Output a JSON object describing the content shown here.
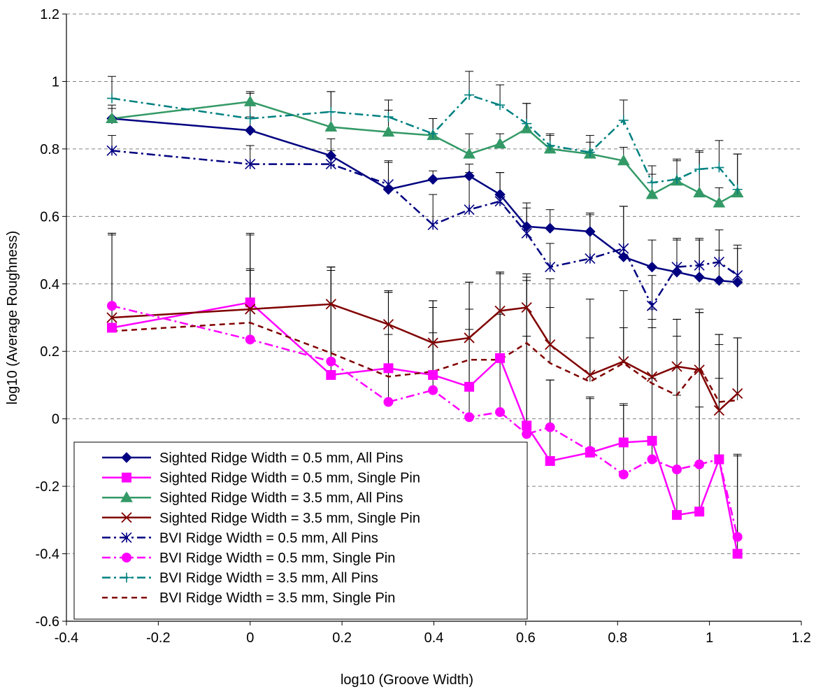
{
  "chart_data": {
    "type": "line",
    "title": "",
    "xlabel": "log10 (Groove Width)",
    "ylabel": "log10 (Average Roughness)",
    "xlim": [
      -0.4,
      1.2
    ],
    "ylim": [
      -0.6,
      1.2
    ],
    "xticks": [
      "-0.4",
      "-0.2",
      "0",
      "0.2",
      "0.4",
      "0.6",
      "0.8",
      "1",
      "1.2"
    ],
    "yticks": [
      "-0.6",
      "-0.4",
      "-0.2",
      "0",
      "0.2",
      "0.4",
      "0.6",
      "0.8",
      "1",
      "1.2"
    ],
    "grid": "horizontal dashed",
    "legend_position": "lower-left",
    "x": [
      -0.301,
      0.0,
      0.176,
      0.301,
      0.398,
      0.477,
      0.544,
      0.602,
      0.653,
      0.74,
      0.813,
      0.875,
      0.929,
      0.978,
      1.021,
      1.061
    ],
    "series": [
      {
        "name": "Sighted Ridge Width = 0.5 mm, All Pins",
        "color": "#000080",
        "marker": "diamond",
        "dash": "solid",
        "values": [
          0.89,
          0.855,
          0.78,
          0.68,
          0.71,
          0.72,
          0.665,
          0.57,
          0.565,
          0.555,
          0.48,
          0.45,
          0.435,
          0.42,
          0.41,
          0.405
        ],
        "errors": [
          0.03,
          0.04,
          0.05,
          0.08,
          0.025,
          0.035,
          0.065,
          0.055,
          0.055,
          0.05,
          0.15,
          0.08,
          0.095,
          0.11,
          0.09,
          0.1
        ]
      },
      {
        "name": "Sighted Ridge Width = 0.5 mm, Single Pin",
        "color": "#FF00FF",
        "marker": "square",
        "dash": "solid",
        "values": [
          0.27,
          0.345,
          0.13,
          0.15,
          0.13,
          0.095,
          0.18,
          -0.02,
          -0.125,
          -0.1,
          -0.07,
          -0.065,
          -0.285,
          -0.275,
          -0.12,
          -0.4
        ],
        "errors": [
          0.28,
          0.2,
          0.31,
          0.225,
          0.2,
          0.31,
          0.25,
          0.43,
          0.24,
          0.16,
          0.11,
          0.39,
          0.58,
          0.59,
          0.37,
          0.29
        ]
      },
      {
        "name": "Sighted Ridge Width = 3.5 mm, All Pins",
        "color": "#339966",
        "marker": "triangle",
        "dash": "solid",
        "values": [
          0.89,
          0.94,
          0.865,
          0.85,
          0.84,
          0.785,
          0.815,
          0.86,
          0.8,
          0.785,
          0.765,
          0.665,
          0.705,
          0.67,
          0.64,
          0.67
        ],
        "errors": [
          0.04,
          0.03,
          0.105,
          0.065,
          0.05,
          0.06,
          0.03,
          0.075,
          0.04,
          0.035,
          0.04,
          0.06,
          0.06,
          0.12,
          0.045,
          0.115
        ]
      },
      {
        "name": "Sighted Ridge Width = 3.5 mm, Single Pin",
        "color": "#800000",
        "marker": "x",
        "dash": "solid",
        "values": [
          0.3,
          0.325,
          0.34,
          0.28,
          0.225,
          0.24,
          0.32,
          0.33,
          0.22,
          0.13,
          0.17,
          0.125,
          0.155,
          0.145,
          0.025,
          0.075
        ],
        "errors": [
          0.25,
          0.225,
          0.11,
          0.1,
          0.125,
          0.165,
          0.115,
          0.1,
          0.11,
          0.11,
          0.1,
          0.17,
          0.14,
          0.17,
          0.225,
          0.165
        ]
      },
      {
        "name": "BVI Ridge Width = 0.5 mm, All Pins",
        "color": "#000080",
        "marker": "asterisk",
        "dash": "dashdot",
        "values": [
          0.795,
          0.755,
          0.755,
          0.695,
          0.575,
          0.62,
          0.645,
          0.55,
          0.45,
          0.475,
          0.505,
          0.335,
          0.45,
          0.455,
          0.465,
          0.425
        ],
        "errors": [
          0.045,
          0.055,
          0.04,
          0.07,
          0.09,
          0.11,
          0.085,
          0.09,
          0.07,
          0.135,
          0.125,
          0.09,
          0.085,
          0.08,
          0.095,
          0.09
        ]
      },
      {
        "name": "BVI Ridge Width = 0.5 mm, Single Pin",
        "color": "#FF00FF",
        "marker": "circle",
        "dash": "dashdot",
        "values": [
          0.335,
          0.235,
          0.17,
          0.05,
          0.085,
          0.005,
          0.02,
          -0.045,
          -0.025,
          -0.095,
          -0.165,
          -0.12,
          -0.15,
          -0.135,
          -0.12,
          -0.35
        ],
        "errors": [
          0.21,
          0.21,
          0.28,
          0.2,
          0.17,
          0.26,
          0.29,
          0.29,
          0.14,
          0.16,
          0.21,
          0.24,
          0.22,
          0.17,
          0.24,
          0.245
        ]
      },
      {
        "name": "BVI Ridge Width = 3.5 mm, All Pins",
        "color": "#008080",
        "marker": "plus",
        "dash": "dashdot",
        "values": [
          0.95,
          0.89,
          0.91,
          0.895,
          0.845,
          0.96,
          0.93,
          0.875,
          0.81,
          0.79,
          0.885,
          0.7,
          0.71,
          0.74,
          0.745,
          0.68
        ],
        "errors": [
          0.065,
          0.075,
          0.06,
          0.05,
          0.045,
          0.07,
          0.06,
          0.06,
          0.035,
          0.05,
          0.06,
          0.05,
          0.06,
          0.055,
          0.08,
          0.105
        ]
      },
      {
        "name": "BVI Ridge Width = 3.5 mm, Single Pin",
        "color": "#800000",
        "marker": "none",
        "dash": "dash",
        "values": [
          0.26,
          0.285,
          0.195,
          0.125,
          0.14,
          0.175,
          0.175,
          0.225,
          0.165,
          0.11,
          0.165,
          0.105,
          0.07,
          0.155,
          0.05,
          0.055
        ],
        "errors": [
          0.29,
          0.155,
          0.255,
          0.25,
          0.21,
          0.15,
          0.26,
          0.195,
          0.25,
          0.245,
          0.215,
          0.165,
          0.175,
          0.17,
          0.17,
          0.185
        ]
      }
    ]
  }
}
